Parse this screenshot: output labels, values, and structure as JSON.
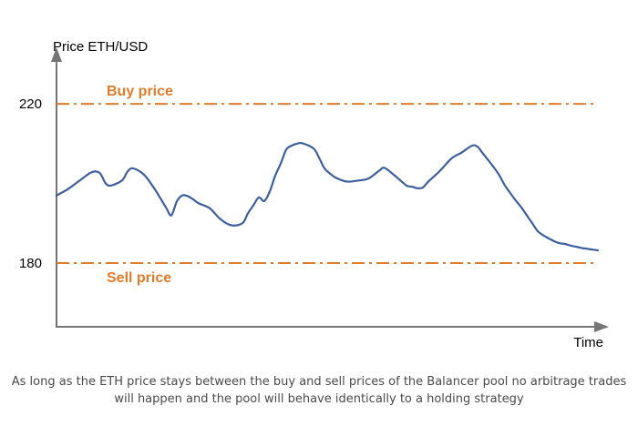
{
  "chart_data": {
    "type": "line",
    "ylabel": "Price ETH/USD",
    "xlabel": "Time",
    "yticks": [
      220,
      180
    ],
    "ylim": [
      164,
      231
    ],
    "xlim": [
      0,
      100
    ],
    "grid": false,
    "reference_lines": [
      {
        "name": "Buy price",
        "value": 220,
        "color": "#e07b2a",
        "style": "dash-dot"
      },
      {
        "name": "Sell price",
        "value": 180,
        "color": "#e07b2a",
        "style": "dash-dot"
      }
    ],
    "series": [
      {
        "color": "#3d5f9e",
        "x": [
          0,
          2,
          4,
          6,
          7,
          8,
          9,
          10,
          12,
          13,
          14,
          16,
          18,
          20,
          21,
          22,
          23,
          24,
          25,
          26,
          28,
          30,
          32,
          34,
          35,
          36,
          37,
          38,
          39,
          40,
          41,
          42,
          43,
          44,
          45,
          47,
          48,
          49,
          50,
          51,
          53,
          55,
          57,
          59,
          60,
          62,
          64,
          65,
          66,
          67,
          68,
          70,
          72,
          73,
          74,
          76,
          77,
          78,
          80,
          81,
          82,
          84,
          85,
          86,
          87,
          88,
          89,
          90,
          91,
          92,
          93,
          94,
          95,
          96,
          97,
          98,
          99
        ],
        "y": [
          197,
          198.5,
          200.5,
          202.5,
          203,
          202.5,
          200,
          199.5,
          200.8,
          203,
          203.8,
          202.2,
          198.5,
          194,
          192,
          195.5,
          197,
          196.8,
          196,
          195,
          193.8,
          191,
          189.5,
          190,
          192.5,
          194.5,
          196.5,
          195.6,
          198,
          202,
          205,
          208.5,
          209.5,
          210,
          210.1,
          208.8,
          206.5,
          203.8,
          202.5,
          201.5,
          200.5,
          200.7,
          201.2,
          203.2,
          203.9,
          201.8,
          199.5,
          199.2,
          198.8,
          199,
          200.5,
          203,
          206,
          207,
          207.7,
          209.5,
          209.2,
          207.5,
          204,
          202,
          199.5,
          195.7,
          194,
          192,
          190,
          188,
          187,
          186.2,
          185.5,
          185,
          184.8,
          184.4,
          184.1,
          183.8,
          183.6,
          183.4,
          183.2
        ]
      }
    ]
  },
  "caption": "As long as the ETH price stays between the buy and sell prices of the Balancer pool no arbitrage trades will happen and the pool will behave identically to a holding strategy"
}
